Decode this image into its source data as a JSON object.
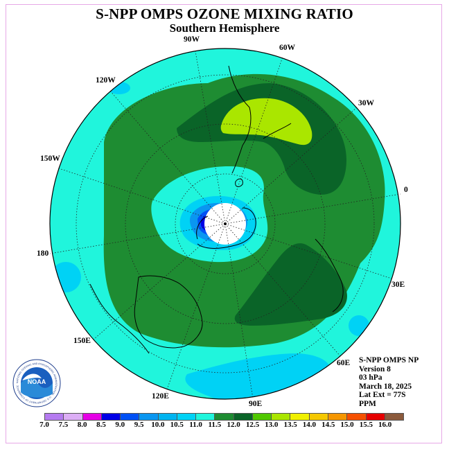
{
  "header": {
    "title": "S-NPP OMPS OZONE MIXING RATIO",
    "subtitle": "Southern Hemisphere"
  },
  "longitude_labels": [
    "90W",
    "60W",
    "30W",
    "0",
    "30E",
    "60E",
    "90E",
    "120E",
    "150E",
    "180",
    "150W",
    "120W"
  ],
  "info": {
    "instrument": "S-NPP OMPS NP",
    "version": "Version 8",
    "level": "03 hPa",
    "date": "March 18, 2025",
    "lat_ext": "Lat Ext = 77S",
    "units": "PPM"
  },
  "logo": {
    "text": "NOAA",
    "ring_text": "NATIONAL OCEANIC AND ATMOSPHERIC ADMINISTRATION · U.S. DEPARTMENT OF COMMERCE"
  },
  "colorbar": {
    "ticks": [
      "7.0",
      "7.5",
      "8.0",
      "8.5",
      "9.0",
      "9.5",
      "10.0",
      "10.5",
      "11.0",
      "11.5",
      "12.0",
      "12.5",
      "13.0",
      "13.5",
      "14.0",
      "14.5",
      "15.0",
      "15.5",
      "16.0"
    ],
    "colors": [
      "#b57bf0",
      "#dcaef5",
      "#e600e6",
      "#0000e6",
      "#0050f5",
      "#0a96f0",
      "#00b4f0",
      "#00d2f5",
      "#20f5dc",
      "#1e8c32",
      "#0a6428",
      "#50c800",
      "#aae600",
      "#f0f000",
      "#f5c800",
      "#f59600",
      "#f55000",
      "#e60000",
      "#8b5a3c"
    ]
  },
  "legend_colors": {
    "cyan": "#20f5dc",
    "green": "#1e8c32",
    "dark_green": "#0a6428",
    "lime": "#aae600",
    "light_blue": "#00d2f5",
    "mid_blue": "#0a96f0",
    "blue": "#0050f5",
    "deep_blue": "#0000e6"
  }
}
